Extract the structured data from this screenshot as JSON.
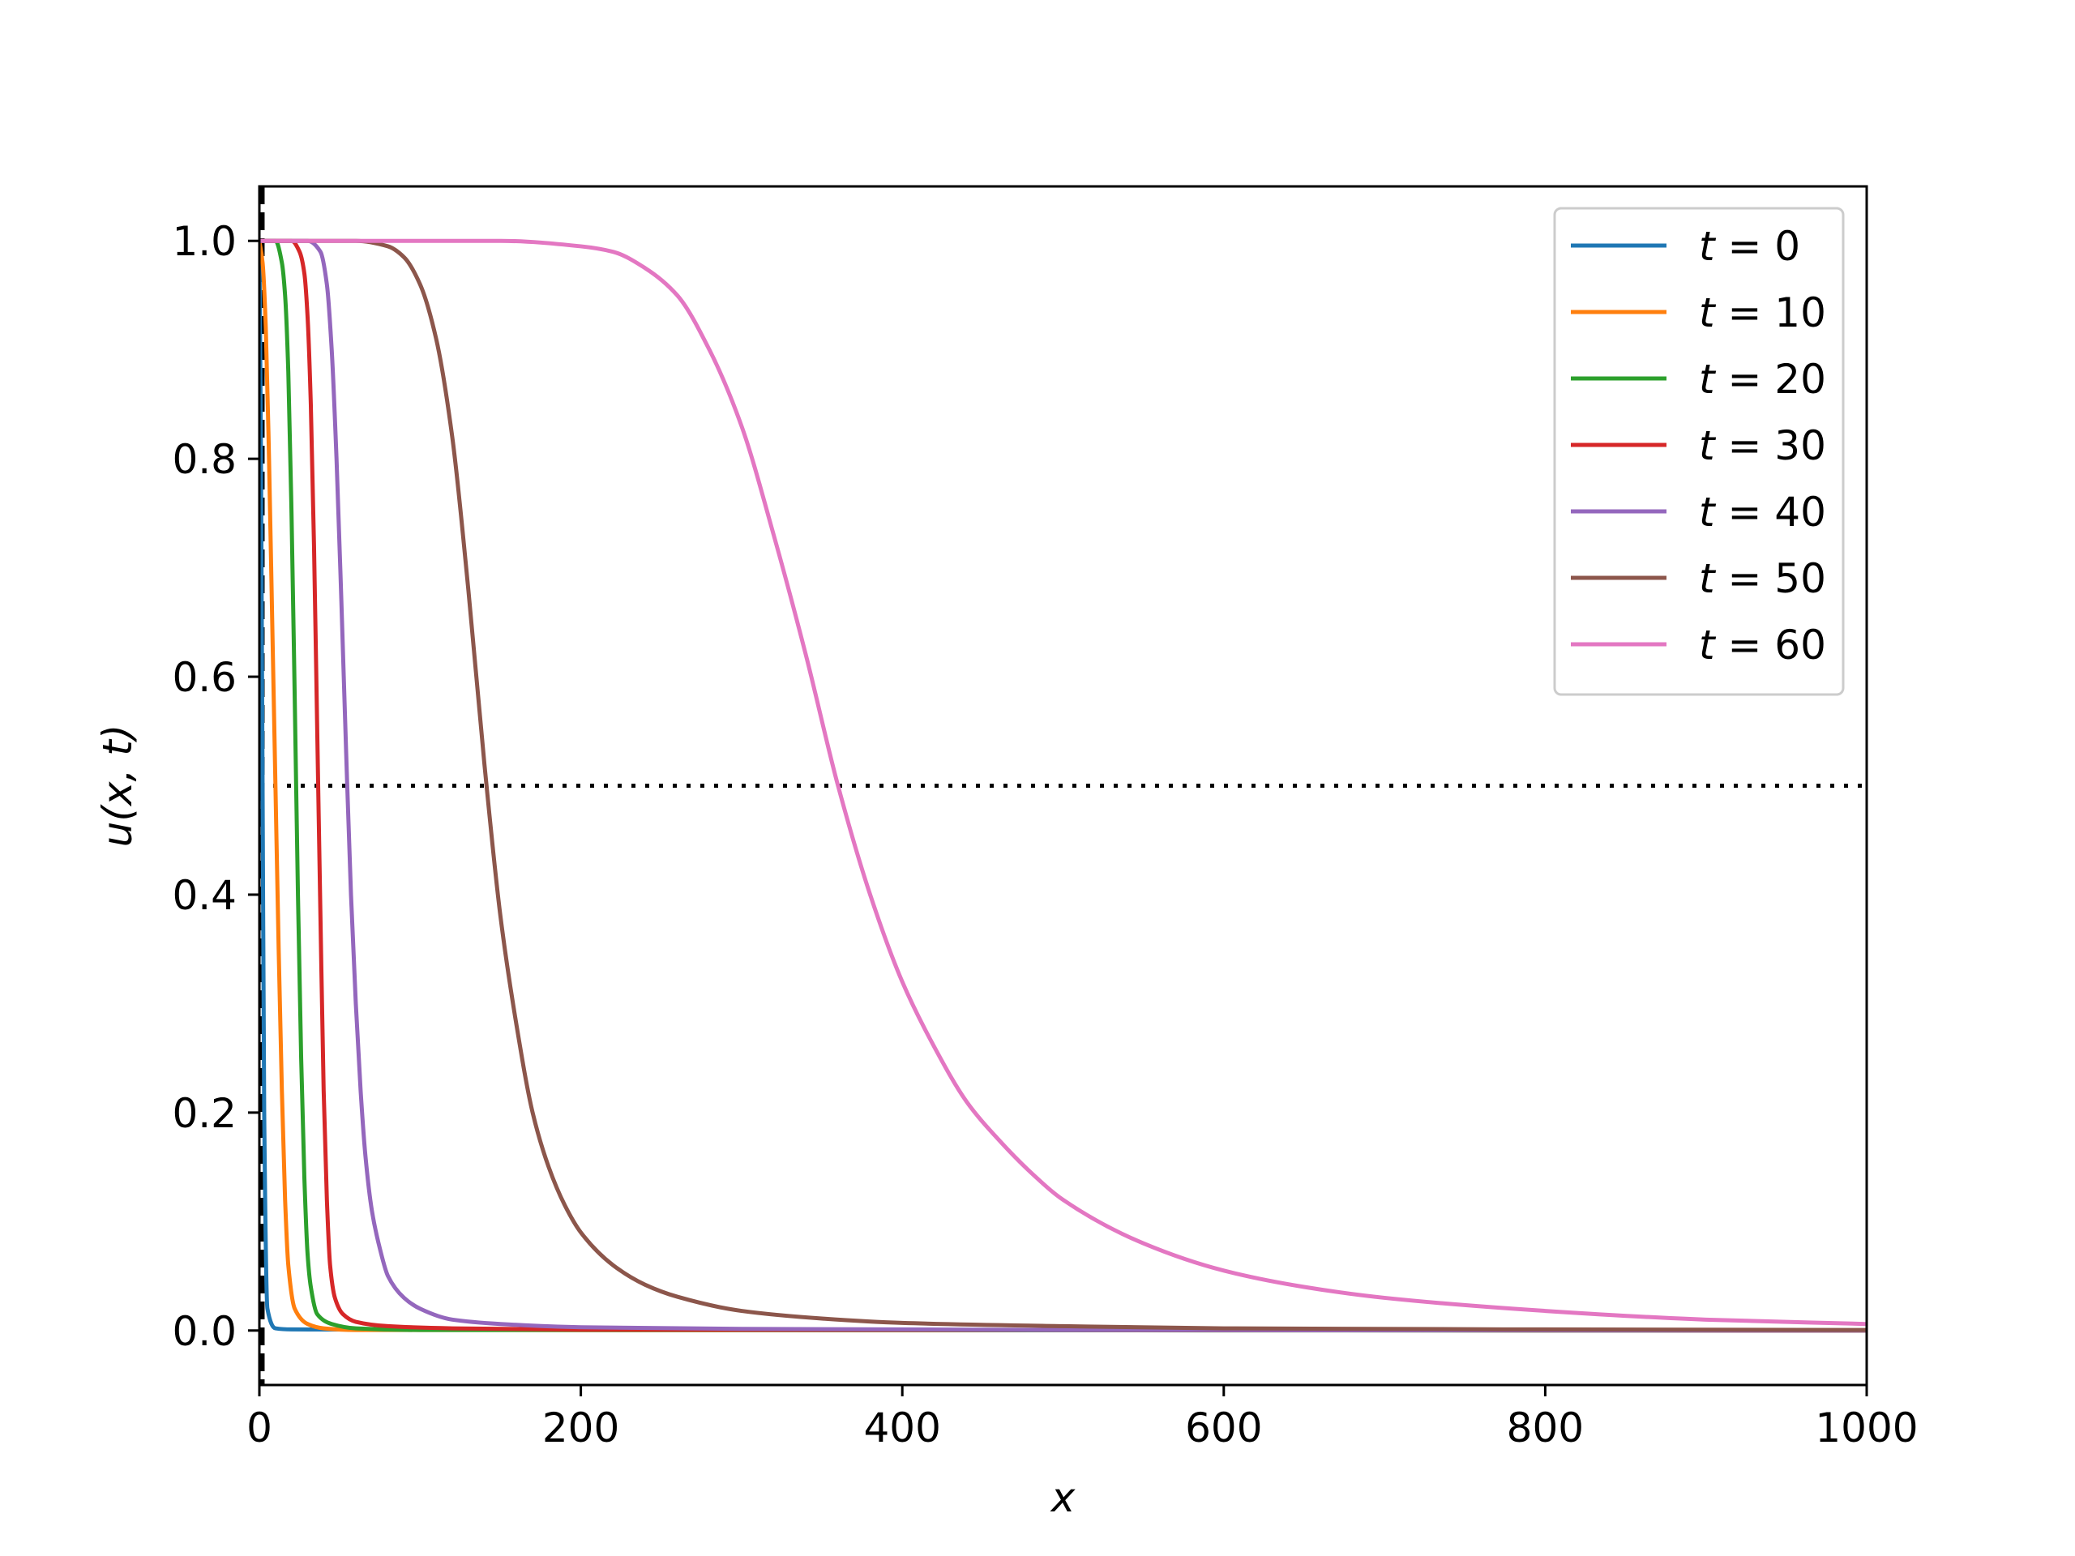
{
  "chart_data": {
    "type": "line",
    "xlabel": "x",
    "ylabel": "u(x, t)",
    "xlim": [
      0,
      1000
    ],
    "ylim": [
      -0.05,
      1.05
    ],
    "x_ticks": [
      0,
      200,
      400,
      600,
      800,
      1000
    ],
    "x_tick_labels": [
      "0",
      "200",
      "400",
      "600",
      "800",
      "1000"
    ],
    "y_ticks": [
      0.0,
      0.2,
      0.4,
      0.6,
      0.8,
      1.0
    ],
    "y_tick_labels": [
      "0.0",
      "0.2",
      "0.4",
      "0.6",
      "0.8",
      "1.0"
    ],
    "grid": false,
    "legend_position": "top-right",
    "reference_lines": [
      {
        "orientation": "horizontal",
        "y": 0.5,
        "style": "dotted",
        "color": "#000000"
      },
      {
        "orientation": "vertical",
        "x": 2,
        "style": "dashed",
        "color": "#000000"
      }
    ],
    "series": [
      {
        "name": "t = 0",
        "t_symbol": "t",
        "t_value": "= 0",
        "color": "#1f77b4",
        "x": [
          0,
          1,
          2,
          3,
          5,
          10,
          20,
          1000
        ],
        "y": [
          1.0,
          0.8,
          0.5,
          0.2,
          0.02,
          0.002,
          0.001,
          0.0
        ]
      },
      {
        "name": "t = 10",
        "t_symbol": "t",
        "t_value": "= 10",
        "color": "#ff7f0e",
        "x": [
          0,
          2,
          4,
          6,
          8,
          10,
          12,
          14,
          16,
          18,
          22,
          30,
          40,
          60,
          1000
        ],
        "y": [
          1.0,
          0.98,
          0.92,
          0.8,
          0.65,
          0.5,
          0.35,
          0.22,
          0.12,
          0.06,
          0.02,
          0.006,
          0.002,
          0.0005,
          0.0
        ]
      },
      {
        "name": "t = 20",
        "t_symbol": "t",
        "t_value": "= 20",
        "color": "#2ca02c",
        "x": [
          0,
          10,
          14,
          16,
          18,
          20,
          22,
          24,
          26,
          28,
          30,
          32,
          36,
          45,
          60,
          100,
          1000
        ],
        "y": [
          1.0,
          1.0,
          0.98,
          0.95,
          0.88,
          0.75,
          0.58,
          0.4,
          0.25,
          0.14,
          0.07,
          0.04,
          0.015,
          0.006,
          0.002,
          0.0005,
          0.0
        ]
      },
      {
        "name": "t = 30",
        "t_symbol": "t",
        "t_value": "= 30",
        "color": "#d62728",
        "x": [
          0,
          20,
          25,
          28,
          30,
          32,
          34,
          36,
          38,
          40,
          42,
          44,
          47,
          52,
          60,
          80,
          120,
          200,
          1000
        ],
        "y": [
          1.0,
          1.0,
          0.99,
          0.97,
          0.93,
          0.85,
          0.72,
          0.55,
          0.38,
          0.22,
          0.12,
          0.06,
          0.03,
          0.015,
          0.008,
          0.004,
          0.002,
          0.0008,
          0.0
        ]
      },
      {
        "name": "t = 40",
        "t_symbol": "t",
        "t_value": "= 40",
        "color": "#9467bd",
        "x": [
          0,
          30,
          38,
          42,
          45,
          48,
          51,
          54,
          57,
          60,
          63,
          66,
          70,
          75,
          80,
          90,
          100,
          120,
          150,
          200,
          300,
          500,
          1000
        ],
        "y": [
          1.0,
          1.0,
          0.99,
          0.96,
          0.9,
          0.8,
          0.67,
          0.53,
          0.4,
          0.3,
          0.22,
          0.16,
          0.11,
          0.075,
          0.05,
          0.03,
          0.02,
          0.01,
          0.006,
          0.003,
          0.0015,
          0.0005,
          0.0
        ]
      },
      {
        "name": "t = 50",
        "t_symbol": "t",
        "t_value": "= 50",
        "color": "#8c564b",
        "x": [
          0,
          60,
          80,
          90,
          100,
          110,
          120,
          130,
          140,
          150,
          160,
          170,
          180,
          190,
          200,
          220,
          240,
          260,
          300,
          350,
          400,
          500,
          600,
          800,
          1000
        ],
        "y": [
          1.0,
          1.0,
          0.995,
          0.985,
          0.96,
          0.91,
          0.82,
          0.68,
          0.52,
          0.38,
          0.28,
          0.2,
          0.15,
          0.115,
          0.09,
          0.06,
          0.042,
          0.031,
          0.018,
          0.011,
          0.007,
          0.004,
          0.002,
          0.001,
          0.0005
        ]
      },
      {
        "name": "t = 60",
        "t_symbol": "t",
        "t_value": "= 60",
        "color": "#e377c2",
        "x": [
          0,
          100,
          150,
          200,
          220,
          240,
          260,
          280,
          300,
          320,
          340,
          360,
          380,
          400,
          420,
          440,
          460,
          480,
          500,
          550,
          600,
          650,
          700,
          800,
          900,
          1000
        ],
        "y": [
          1.0,
          1.0,
          1.0,
          0.995,
          0.99,
          0.975,
          0.95,
          0.9,
          0.83,
          0.73,
          0.62,
          0.5,
          0.4,
          0.32,
          0.26,
          0.21,
          0.175,
          0.145,
          0.12,
          0.08,
          0.055,
          0.04,
          0.03,
          0.018,
          0.01,
          0.006
        ]
      }
    ]
  }
}
